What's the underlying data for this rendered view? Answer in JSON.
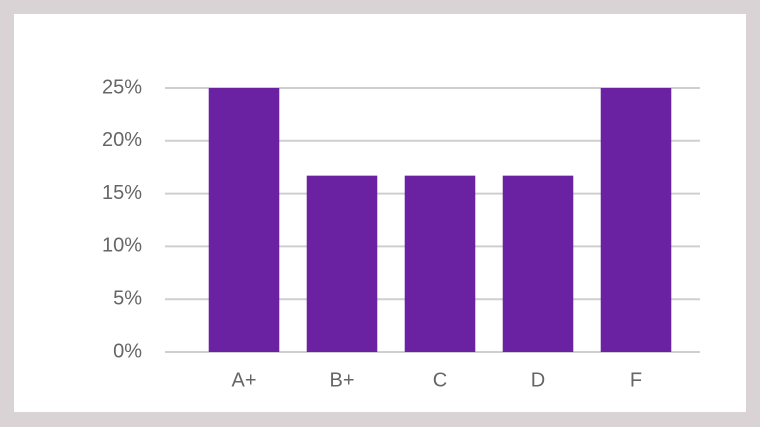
{
  "chart_data": {
    "type": "bar",
    "categories": [
      "A+",
      "B+",
      "C",
      "D",
      "F"
    ],
    "values": [
      25,
      16.7,
      16.7,
      16.7,
      25
    ],
    "color": "#6a22a3",
    "ylim": [
      0,
      25
    ],
    "yticks": [
      {
        "value": 0,
        "label": "0%"
      },
      {
        "value": 5,
        "label": "5%"
      },
      {
        "value": 10,
        "label": "10%"
      },
      {
        "value": 15,
        "label": "15%"
      },
      {
        "value": 20,
        "label": "20%"
      },
      {
        "value": 25,
        "label": "25%"
      }
    ],
    "grid": true
  }
}
